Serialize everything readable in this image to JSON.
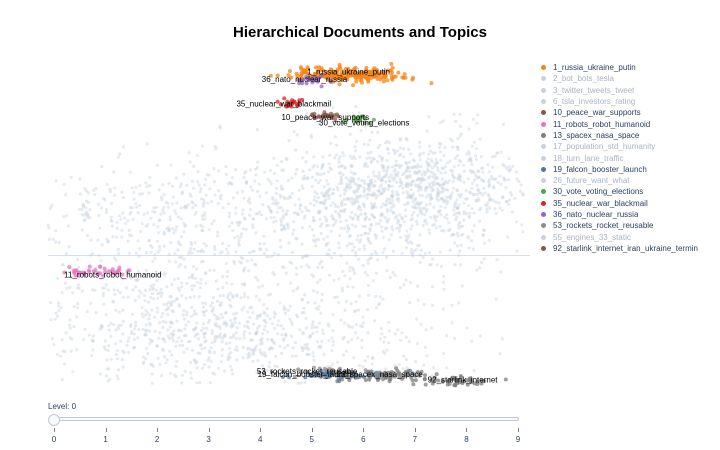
{
  "chart_data": {
    "type": "scatter",
    "title": "Hierarchical Documents and Topics",
    "xlabel": "",
    "ylabel": "",
    "grid": false,
    "legend_position": "right",
    "legend": [
      {
        "name": "1_russia_ukraine_putin",
        "color": "#f58518",
        "active": true
      },
      {
        "name": "2_bot_bots_tesla",
        "color": "#c8d2de",
        "active": false
      },
      {
        "name": "3_twitter_tweets_tweet",
        "color": "#c8d2de",
        "active": false
      },
      {
        "name": "6_tsla_investors_rating",
        "color": "#c8d2de",
        "active": false
      },
      {
        "name": "10_peace_war_supports",
        "color": "#8c564b",
        "active": true
      },
      {
        "name": "11_robots_robot_humanoid",
        "color": "#e377c2",
        "active": true
      },
      {
        "name": "13_spacex_nasa_space",
        "color": "#7f7f7f",
        "active": true
      },
      {
        "name": "17_population_std_humanity",
        "color": "#c8d2de",
        "active": false
      },
      {
        "name": "18_turn_lane_traffic",
        "color": "#c8d2de",
        "active": false
      },
      {
        "name": "19_falcon_booster_launch",
        "color": "#4c78a8",
        "active": true
      },
      {
        "name": "26_future_want_what",
        "color": "#c8d2de",
        "active": false
      },
      {
        "name": "30_vote_voting_elections",
        "color": "#54a24b",
        "active": true
      },
      {
        "name": "35_nuclear_war_blackmail",
        "color": "#d62728",
        "active": true
      },
      {
        "name": "36_nato_nuclear_russia",
        "color": "#9467bd",
        "active": true
      },
      {
        "name": "53_rockets_rocket_reusable",
        "color": "#8c8c8c",
        "active": true
      },
      {
        "name": "55_engines_33_static",
        "color": "#c8d2de",
        "active": false
      },
      {
        "name": "92_starlink_internet_iran_ukraine_termin",
        "color": "#8c564b",
        "active": true
      }
    ],
    "topic_labels": [
      {
        "text": "1_russia_ukraine_putin",
        "x": 5.8,
        "y": 9.5
      },
      {
        "text": "36_nato_nuclear_russia",
        "x": 4.95,
        "y": 9.25
      },
      {
        "text": "35_nuclear_war_blackmail",
        "x": 4.55,
        "y": 8.4
      },
      {
        "text": "10_peace_war_supports",
        "x": 5.35,
        "y": 7.95
      },
      {
        "text": "30_vote_voting_elections",
        "x": 6.1,
        "y": 7.75
      },
      {
        "text": "11_robots_robot_humanoid",
        "x": 1.25,
        "y": 2.55
      },
      {
        "text": "53_rockets_rocket_reusable",
        "x": 5.0,
        "y": -0.75
      },
      {
        "text": "19_falcon_booster_launch",
        "x": 4.95,
        "y": -0.85
      },
      {
        "text": "13_spacex_nasa_space",
        "x": 6.4,
        "y": -0.85
      },
      {
        "text": "92_starlink_internet",
        "x": 8.0,
        "y": -1.05
      }
    ],
    "clusters": [
      {
        "topic": "1_russia_ukraine_putin",
        "color": "#f58518",
        "cx": 5.75,
        "cy": 9.5,
        "sx": 0.55,
        "sy": 0.12,
        "n": 240
      },
      {
        "topic": "36_nato_nuclear_russia",
        "color": "#9467bd",
        "cx": 5.1,
        "cy": 9.3,
        "sx": 0.15,
        "sy": 0.08,
        "n": 25
      },
      {
        "topic": "35_nuclear_war_blackmail",
        "color": "#d62728",
        "cx": 4.7,
        "cy": 8.5,
        "sx": 0.12,
        "sy": 0.07,
        "n": 25
      },
      {
        "topic": "10_peace_war_supports",
        "color": "#8c564b",
        "cx": 5.35,
        "cy": 8.1,
        "sx": 0.15,
        "sy": 0.06,
        "n": 25
      },
      {
        "topic": "30_vote_voting_elections",
        "color": "#54a24b",
        "cx": 6.0,
        "cy": 7.95,
        "sx": 0.12,
        "sy": 0.08,
        "n": 20
      },
      {
        "topic": "11_robots_robot_humanoid",
        "color": "#e377c2",
        "cx": 0.9,
        "cy": 2.75,
        "sx": 0.35,
        "sy": 0.08,
        "n": 40
      },
      {
        "topic": "53_rockets_rocket_reusable",
        "color": "#8c8c8c",
        "cx": 5.3,
        "cy": -0.7,
        "sx": 0.4,
        "sy": 0.07,
        "n": 40
      },
      {
        "topic": "19_falcon_booster_launch",
        "color": "#4c78a8",
        "cx": 5.6,
        "cy": -0.8,
        "sx": 0.45,
        "sy": 0.07,
        "n": 50
      },
      {
        "topic": "13_spacex_nasa_space",
        "color": "#7f7f7f",
        "cx": 6.5,
        "cy": -0.8,
        "sx": 0.55,
        "sy": 0.1,
        "n": 90
      },
      {
        "topic": "92_starlink_internet",
        "color": "#7f7f7f",
        "cx": 7.9,
        "cy": -1.0,
        "sx": 0.3,
        "sy": 0.07,
        "n": 50
      }
    ],
    "background_points": {
      "color": "#c8d2de",
      "n": 2600
    },
    "divider_line_y": 3.3,
    "slider": {
      "label": "Level: 0",
      "value": 0,
      "min": 0,
      "max": 9,
      "ticks": [
        "0",
        "1",
        "2",
        "3",
        "4",
        "5",
        "6",
        "7",
        "8",
        "9"
      ]
    }
  }
}
